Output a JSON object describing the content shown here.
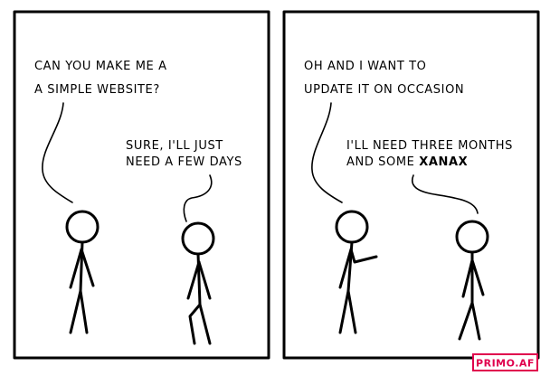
{
  "panel_left": {
    "speech_customer": [
      "CAN YOU MAKE ME A",
      "A SIMPLE WEBSITE?"
    ],
    "speech_developer": [
      "SURE, I'LL JUST",
      "NEED A FEW DAYS"
    ]
  },
  "panel_right": {
    "speech_customer": [
      "OH AND I WANT TO",
      "UPDATE IT ON OCCASION"
    ],
    "speech_developer_line1": "I'LL NEED THREE MONTHS",
    "speech_developer_line2_prefix": "AND SOME ",
    "speech_developer_line2_emphasis": "XANAX"
  },
  "badge": {
    "text": "PRIMO.AF",
    "color": "#e0004d"
  }
}
